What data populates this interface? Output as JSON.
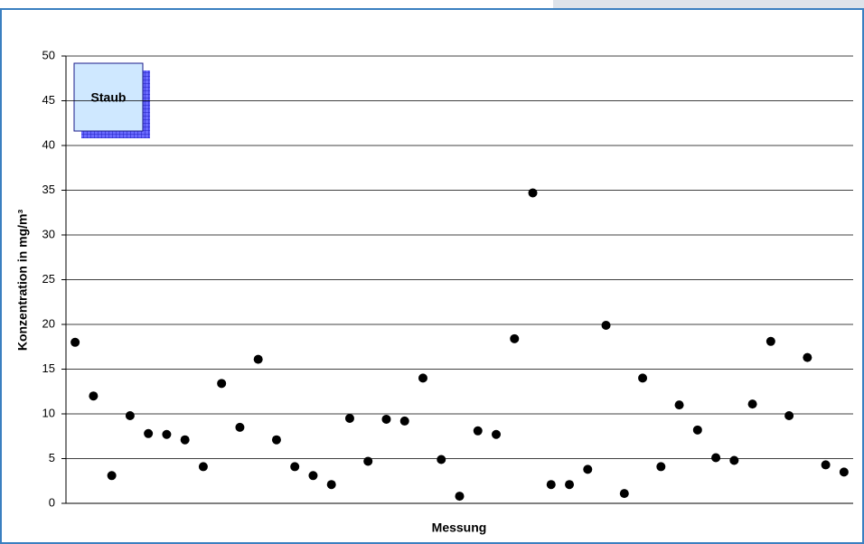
{
  "chart_data": {
    "type": "scatter",
    "x_label": "Messung",
    "y_label": "Konzentration in mg/m³",
    "categories": [
      null,
      null,
      null,
      null,
      null,
      null,
      null,
      null,
      null,
      null,
      null,
      null,
      null,
      null,
      null,
      null,
      null,
      null,
      null,
      null,
      null,
      null,
      null,
      null,
      null,
      null,
      null,
      null,
      null,
      null,
      null,
      null,
      null,
      null,
      null,
      null,
      null,
      null,
      null,
      null,
      null,
      null,
      null
    ],
    "series": [
      {
        "name": "Staub",
        "color": "#000000",
        "values": [
          18.0,
          12.0,
          3.1,
          9.8,
          7.8,
          7.7,
          7.1,
          4.1,
          13.4,
          8.5,
          16.1,
          7.1,
          4.1,
          3.1,
          2.1,
          9.5,
          4.7,
          9.4,
          9.2,
          14.0,
          4.9,
          0.8,
          8.1,
          7.7,
          18.4,
          34.7,
          2.1,
          2.1,
          3.8,
          19.9,
          1.1,
          14.0,
          4.1,
          11.0,
          8.2,
          5.1,
          4.8,
          11.1,
          18.1,
          9.8,
          16.3,
          4.3,
          3.5
        ]
      }
    ],
    "ylim": [
      0,
      50
    ],
    "yticks": [
      0,
      5,
      10,
      15,
      20,
      25,
      30,
      35,
      40,
      45,
      50
    ],
    "grid": true
  }
}
